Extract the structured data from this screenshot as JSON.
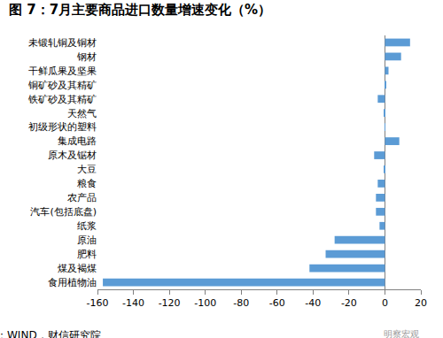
{
  "chart_data": {
    "type": "bar",
    "title": "图 7：7月主要商品进口数量增速变化（%）",
    "orientation": "horizontal",
    "categories": [
      "未锻轧铜及铜材",
      "钢材",
      "干鲜瓜果及坚果",
      "铜矿砂及其精矿",
      "铁矿砂及其精矿",
      "天然气",
      "初级形状的塑料",
      "集成电路",
      "原木及锯材",
      "大豆",
      "粮食",
      "农产品",
      "汽车(包括底盘)",
      "纸浆",
      "原油",
      "肥料",
      "煤及褐煤",
      "食用植物油"
    ],
    "values": [
      14,
      9,
      2,
      0.3,
      -4,
      -0.5,
      0.2,
      8,
      -6,
      -0.5,
      -4,
      -5,
      -5,
      -3,
      -28,
      -33,
      -42,
      -157
    ],
    "color": "#5b9bd5",
    "xlim": [
      -160,
      20
    ],
    "xticks": [
      -160,
      -140,
      -120,
      -100,
      -80,
      -60,
      -40,
      -20,
      0,
      20
    ],
    "grid": false,
    "annotations": [
      "资料来源：WIND，财信研究院",
      "明察宏观"
    ]
  }
}
